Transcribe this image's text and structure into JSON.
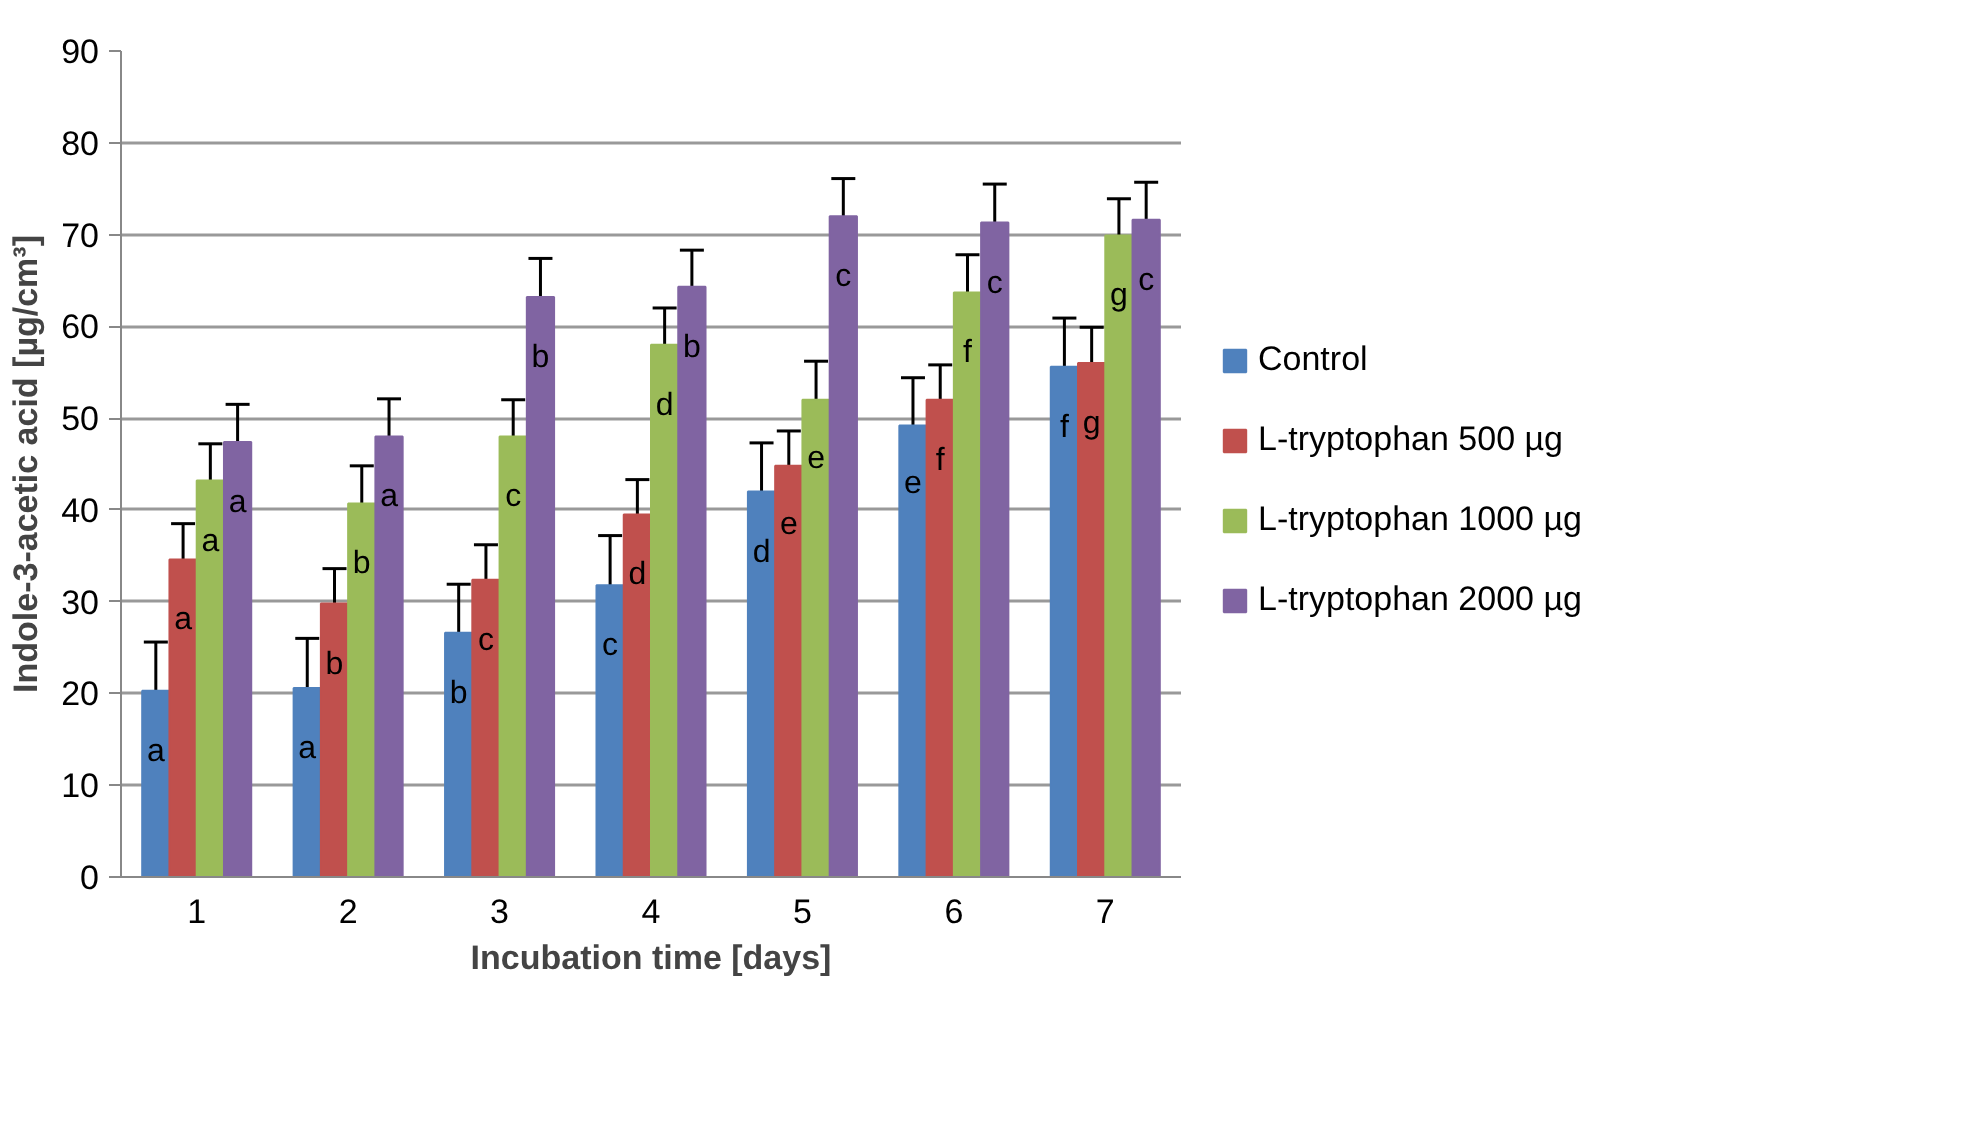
{
  "chart_data": {
    "type": "bar",
    "xlabel": "Incubation time [days]",
    "ylabel": "Indole-3-acetic acid [µg/cm³]",
    "categories": [
      "1",
      "2",
      "3",
      "4",
      "5",
      "6",
      "7"
    ],
    "ylim": [
      0,
      90
    ],
    "yticks": [
      0,
      10,
      20,
      30,
      40,
      50,
      60,
      70,
      80,
      90
    ],
    "grid": "y",
    "legend": "right",
    "series": [
      {
        "name": "Control",
        "color": "#4f81bd",
        "values": [
          20.3,
          20.6,
          26.6,
          31.8,
          42.0,
          49.2,
          55.6
        ],
        "errors": [
          [
            20.3,
            25.6
          ],
          [
            20.6,
            26.0
          ],
          [
            26.6,
            31.9
          ],
          [
            31.8,
            37.2
          ],
          [
            42.0,
            47.3
          ],
          [
            49.2,
            54.4
          ],
          [
            55.6,
            60.9
          ]
        ],
        "value_labels": [
          "a",
          "a",
          "b",
          "c",
          "d",
          "e",
          "f"
        ]
      },
      {
        "name": "L-tryptophan 500 µg",
        "color": "#c0504d",
        "values": [
          34.6,
          29.8,
          32.4,
          39.5,
          44.8,
          52.0,
          56.0
        ],
        "errors": [
          [
            34.6,
            38.5
          ],
          [
            29.8,
            33.6
          ],
          [
            32.4,
            36.2
          ],
          [
            39.5,
            43.3
          ],
          [
            44.8,
            48.6
          ],
          [
            52.0,
            55.8
          ],
          [
            56.0,
            59.9
          ]
        ],
        "value_labels": [
          "a",
          "b",
          "c",
          "d",
          "e",
          "f",
          "g"
        ]
      },
      {
        "name": "L-tryptophan 1000 µg",
        "color": "#9bbb59",
        "values": [
          43.2,
          40.7,
          48.0,
          58.0,
          52.0,
          63.7,
          69.9
        ],
        "errors": [
          [
            43.2,
            47.2
          ],
          [
            40.7,
            44.8
          ],
          [
            48.0,
            52.0
          ],
          [
            58.0,
            62.0
          ],
          [
            52.0,
            56.2
          ],
          [
            63.7,
            67.8
          ],
          [
            69.9,
            73.9
          ]
        ],
        "value_labels": [
          "a",
          "b",
          "c",
          "d",
          "e",
          "f",
          "g"
        ]
      },
      {
        "name": "L-tryptophan 2000 µg",
        "color": "#8064a2",
        "values": [
          47.4,
          48.0,
          63.2,
          64.3,
          72.0,
          71.3,
          71.6
        ],
        "errors": [
          [
            47.4,
            51.5
          ],
          [
            48.0,
            52.1
          ],
          [
            63.2,
            67.4
          ],
          [
            64.3,
            68.3
          ],
          [
            72.0,
            76.1
          ],
          [
            71.3,
            75.5
          ],
          [
            71.6,
            75.7
          ]
        ],
        "value_labels": [
          "a",
          "a",
          "b",
          "b",
          "c",
          "c",
          "c"
        ]
      }
    ]
  }
}
